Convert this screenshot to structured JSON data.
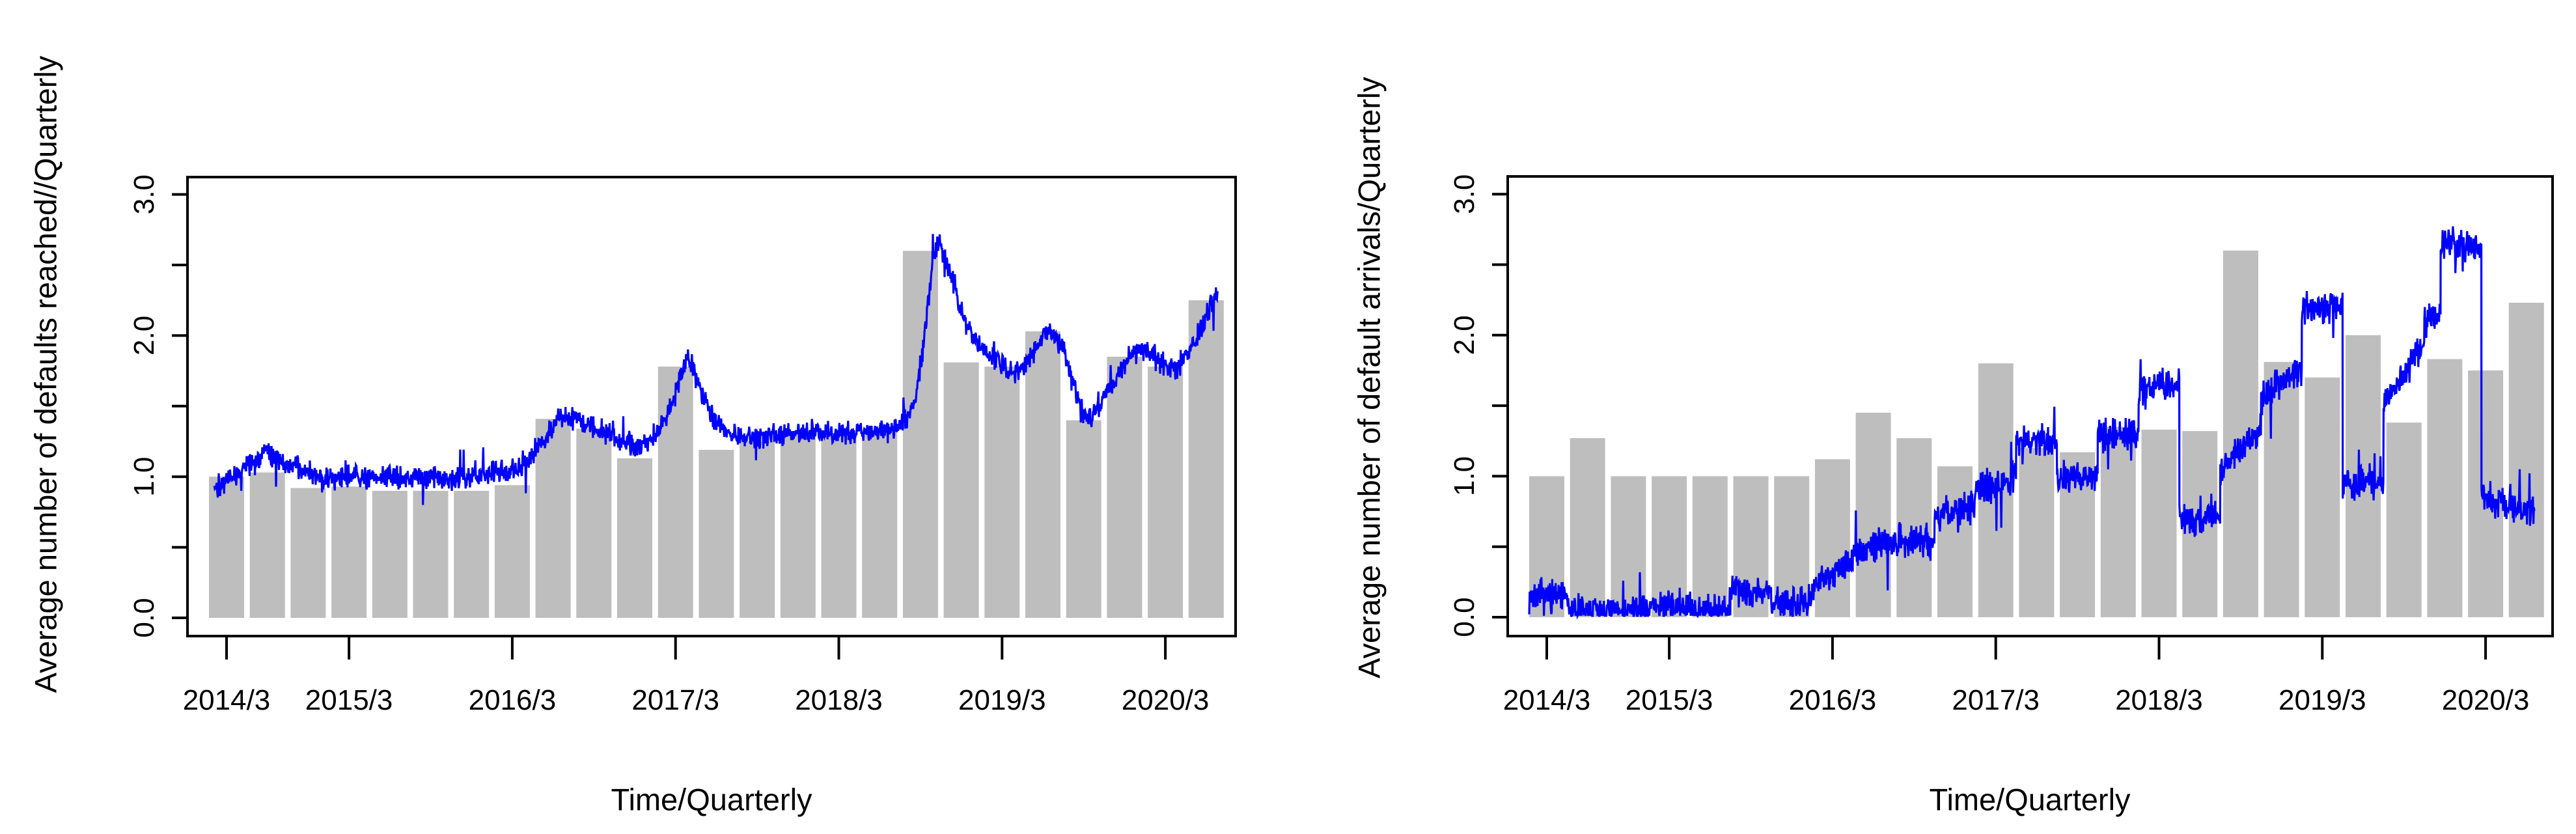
{
  "colors": {
    "background": "#ffffff",
    "bar_fill": "#bebebe",
    "line": "#0000ff",
    "axis": "#000000",
    "text": "#000000"
  },
  "chart_data": [
    {
      "type": "bar",
      "title": "",
      "ylabel": "Average number of defaults reached//Quarterly",
      "xlabel": "Time/Quarterly",
      "ylim": [
        0,
        3
      ],
      "grid": false,
      "legend": "none",
      "y_ticks": [
        0,
        0.5,
        1,
        1.5,
        2,
        2.5,
        3
      ],
      "y_tick_labels": [
        "0.0",
        "1.0",
        "2.0",
        "3.0"
      ],
      "y_tick_label_values": [
        0,
        1,
        2,
        3
      ],
      "x_tick_labels": [
        "2014/3",
        "2015/3",
        "2016/3",
        "2017/3",
        "2018/3",
        "2019/3",
        "2020/3"
      ],
      "x_tick_bar_index": [
        1,
        4,
        8,
        12,
        16,
        20,
        24
      ],
      "n_bars": 25,
      "values": [
        1.0,
        1.03,
        0.92,
        0.93,
        0.9,
        0.9,
        0.9,
        0.94,
        1.41,
        1.34,
        1.13,
        1.78,
        1.19,
        1.25,
        1.3,
        1.31,
        1.31,
        2.6,
        1.81,
        1.78,
        2.03,
        1.4,
        1.85,
        1.78,
        2.25
      ],
      "series": [
        {
          "name": "blue-noisy-line",
          "style": "smooth",
          "noise": 0.048,
          "seed": 42,
          "anchors": [
            [
              0.7,
              0.93
            ],
            [
              1.2,
              1.0
            ],
            [
              1.6,
              1.1
            ],
            [
              2.0,
              1.17
            ],
            [
              2.3,
              1.12
            ],
            [
              2.8,
              1.05
            ],
            [
              3.2,
              1.0
            ],
            [
              3.6,
              0.98
            ],
            [
              4.0,
              1.0
            ],
            [
              4.5,
              0.99
            ],
            [
              5.0,
              1.0
            ],
            [
              5.5,
              0.99
            ],
            [
              6.0,
              1.0
            ],
            [
              6.5,
              0.98
            ],
            [
              7.0,
              1.0
            ],
            [
              7.5,
              1.02
            ],
            [
              8.0,
              1.05
            ],
            [
              8.4,
              1.12
            ],
            [
              8.8,
              1.28
            ],
            [
              9.1,
              1.4
            ],
            [
              9.4,
              1.42
            ],
            [
              9.8,
              1.38
            ],
            [
              10.2,
              1.33
            ],
            [
              10.6,
              1.27
            ],
            [
              11.0,
              1.22
            ],
            [
              11.3,
              1.24
            ],
            [
              11.6,
              1.33
            ],
            [
              11.9,
              1.5
            ],
            [
              12.1,
              1.68
            ],
            [
              12.3,
              1.83
            ],
            [
              12.45,
              1.75
            ],
            [
              12.7,
              1.55
            ],
            [
              12.9,
              1.42
            ],
            [
              13.2,
              1.32
            ],
            [
              13.6,
              1.27
            ],
            [
              14.0,
              1.28
            ],
            [
              14.5,
              1.3
            ],
            [
              15.0,
              1.3
            ],
            [
              15.5,
              1.32
            ],
            [
              16.0,
              1.31
            ],
            [
              16.5,
              1.32
            ],
            [
              17.0,
              1.31
            ],
            [
              17.4,
              1.33
            ],
            [
              17.7,
              1.42
            ],
            [
              17.9,
              1.6
            ],
            [
              18.1,
              2.0
            ],
            [
              18.3,
              2.5
            ],
            [
              18.45,
              2.67
            ],
            [
              18.6,
              2.55
            ],
            [
              18.9,
              2.3
            ],
            [
              19.1,
              2.1
            ],
            [
              19.4,
              1.95
            ],
            [
              19.7,
              1.85
            ],
            [
              20.0,
              1.78
            ],
            [
              20.3,
              1.73
            ],
            [
              20.6,
              1.8
            ],
            [
              20.9,
              1.95
            ],
            [
              21.2,
              2.03
            ],
            [
              21.5,
              1.9
            ],
            [
              21.8,
              1.6
            ],
            [
              22.0,
              1.45
            ],
            [
              22.2,
              1.4
            ],
            [
              22.5,
              1.55
            ],
            [
              22.8,
              1.7
            ],
            [
              23.1,
              1.85
            ],
            [
              23.4,
              1.9
            ],
            [
              23.7,
              1.87
            ],
            [
              24.0,
              1.78
            ],
            [
              24.3,
              1.78
            ],
            [
              24.6,
              1.9
            ],
            [
              24.9,
              2.05
            ],
            [
              25.1,
              2.2
            ],
            [
              25.3,
              2.33
            ]
          ]
        }
      ]
    },
    {
      "type": "bar",
      "title": "",
      "ylabel": "Average number of default arrivals/Quarterly",
      "xlabel": "Time/Quarterly",
      "ylim": [
        0,
        3
      ],
      "grid": false,
      "legend": "none",
      "y_ticks": [
        0,
        0.5,
        1,
        1.5,
        2,
        2.5,
        3
      ],
      "y_tick_labels": [
        "0.0",
        "1.0",
        "2.0",
        "3.0"
      ],
      "y_tick_label_values": [
        0,
        1,
        2,
        3
      ],
      "x_tick_labels": [
        "2014/3",
        "2015/3",
        "2016/3",
        "2017/3",
        "2018/3",
        "2019/3",
        "2020/3"
      ],
      "x_tick_bar_index": [
        1,
        4,
        8,
        12,
        16,
        20,
        24
      ],
      "n_bars": 25,
      "values": [
        1.0,
        1.27,
        1.0,
        1.0,
        1.0,
        1.0,
        1.0,
        1.12,
        1.45,
        1.27,
        1.07,
        1.8,
        1.2,
        1.17,
        1.35,
        1.33,
        1.32,
        2.6,
        1.81,
        1.7,
        2.0,
        1.38,
        1.83,
        1.75,
        2.23
      ],
      "series": [
        {
          "name": "blue-step-line",
          "style": "steps",
          "noise": 0.07,
          "seed": 7,
          "segments": [
            [
              0.57,
              1.5,
              0.15,
              0.15
            ],
            [
              1.5,
              2.5,
              0.05,
              0.05
            ],
            [
              2.5,
              3.5,
              0.04,
              0.04
            ],
            [
              3.5,
              4.5,
              0.08,
              0.08
            ],
            [
              4.5,
              5.5,
              0.06,
              0.06
            ],
            [
              5.5,
              6.5,
              0.18,
              0.18
            ],
            [
              6.5,
              7.5,
              0.1,
              0.1
            ],
            [
              7.5,
              8.5,
              0.25,
              0.38
            ],
            [
              8.5,
              9.5,
              0.45,
              0.55
            ],
            [
              9.5,
              10.5,
              0.55,
              0.55
            ],
            [
              10.5,
              11.5,
              0.72,
              0.78
            ],
            [
              11.5,
              12.5,
              0.9,
              1.0
            ],
            [
              12.5,
              13.5,
              1.25,
              1.25
            ],
            [
              13.5,
              14.5,
              1.0,
              1.0
            ],
            [
              14.5,
              15.5,
              1.3,
              1.3
            ],
            [
              15.5,
              16.5,
              1.62,
              1.68
            ],
            [
              16.5,
              17.5,
              0.68,
              0.72
            ],
            [
              17.5,
              18.5,
              1.05,
              1.35
            ],
            [
              18.5,
              19.5,
              1.55,
              1.78
            ],
            [
              19.5,
              20.5,
              2.2,
              2.2
            ],
            [
              20.5,
              21.5,
              0.95,
              0.95
            ],
            [
              21.5,
              22.5,
              1.5,
              1.95
            ],
            [
              22.5,
              22.9,
              2.1,
              2.15
            ],
            [
              22.9,
              23.9,
              2.68,
              2.62
            ],
            [
              23.9,
              25.2,
              0.85,
              0.75
            ]
          ]
        }
      ]
    }
  ]
}
